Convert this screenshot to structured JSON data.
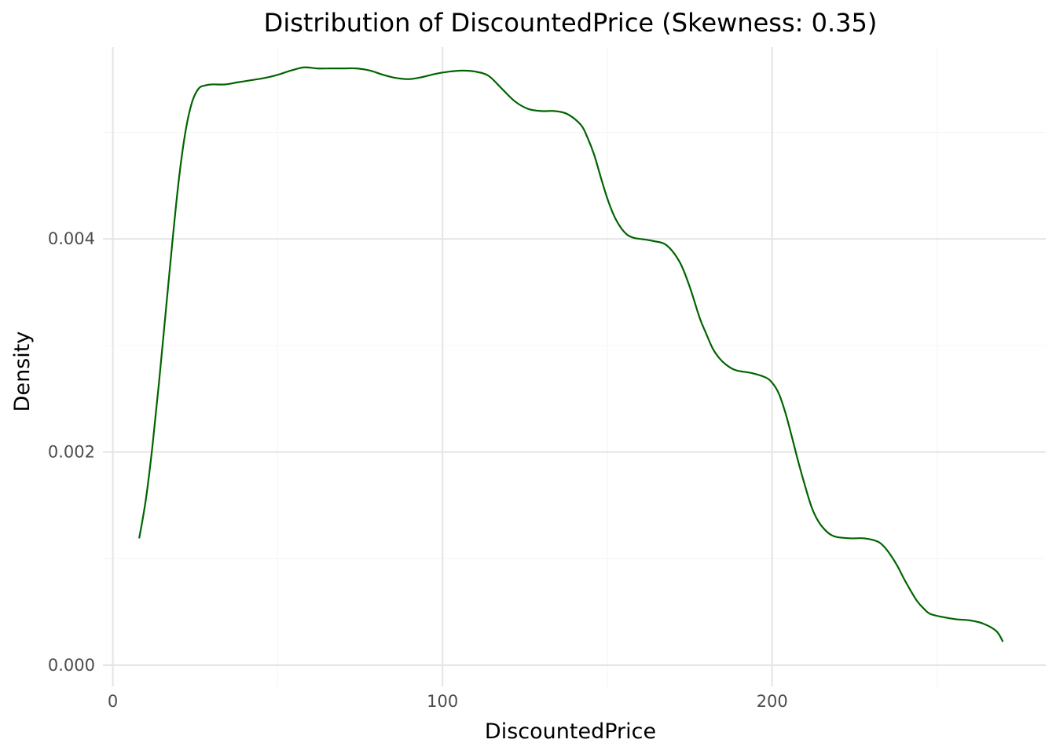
{
  "chart_data": {
    "type": "line",
    "title": "Distribution of DiscountedPrice (Skewness: 0.35)",
    "xlabel": "DiscountedPrice",
    "ylabel": "Density",
    "xlim": [
      -3,
      283
    ],
    "ylim": [
      -0.0002,
      0.0058
    ],
    "x_ticks": [
      0,
      100,
      200
    ],
    "x_tick_labels": [
      "0",
      "100",
      "200"
    ],
    "y_ticks": [
      0.0,
      0.002,
      0.004
    ],
    "y_tick_labels": [
      "0.000",
      "0.002",
      "0.004"
    ],
    "x_minor_ticks": [
      50,
      150,
      250
    ],
    "y_minor_ticks": [
      0.001,
      0.003,
      0.005
    ],
    "grid": true,
    "legend": "none",
    "line_color": "#006400",
    "series": [
      {
        "x": [
          8,
          10,
          12,
          14,
          16,
          18,
          20,
          22,
          24,
          26,
          28,
          30,
          34,
          38,
          42,
          46,
          50,
          54,
          58,
          62,
          66,
          70,
          74,
          78,
          82,
          86,
          90,
          94,
          98,
          102,
          106,
          110,
          114,
          118,
          122,
          126,
          130,
          134,
          138,
          142,
          144,
          146,
          148,
          150,
          152,
          154,
          156,
          158,
          160,
          164,
          168,
          172,
          175,
          178,
          180,
          182,
          184,
          186,
          188,
          190,
          194,
          198,
          200,
          202,
          204,
          206,
          208,
          210,
          212,
          214,
          216,
          218,
          220,
          224,
          228,
          232,
          234,
          236,
          238,
          240,
          242,
          244,
          246,
          248,
          252,
          256,
          260,
          264,
          268,
          270
        ],
        "y": [
          0.00119,
          0.00155,
          0.00205,
          0.00265,
          0.0033,
          0.00395,
          0.00455,
          0.005,
          0.00528,
          0.00541,
          0.00544,
          0.00545,
          0.00545,
          0.00547,
          0.00549,
          0.00551,
          0.00554,
          0.00558,
          0.00561,
          0.0056,
          0.0056,
          0.0056,
          0.0056,
          0.00558,
          0.00554,
          0.00551,
          0.0055,
          0.00552,
          0.00555,
          0.00557,
          0.00558,
          0.00557,
          0.00553,
          0.00541,
          0.00529,
          0.00522,
          0.0052,
          0.0052,
          0.00517,
          0.00507,
          0.00495,
          0.00479,
          0.00458,
          0.00438,
          0.00422,
          0.00411,
          0.00404,
          0.00401,
          0.004,
          0.00398,
          0.00394,
          0.00378,
          0.00355,
          0.00326,
          0.00311,
          0.00297,
          0.00288,
          0.00282,
          0.00278,
          0.00276,
          0.00274,
          0.0027,
          0.00265,
          0.00255,
          0.00237,
          0.00214,
          0.0019,
          0.00168,
          0.00148,
          0.00135,
          0.00127,
          0.00122,
          0.0012,
          0.00119,
          0.00119,
          0.00116,
          0.00111,
          0.00103,
          0.00093,
          0.00081,
          0.0007,
          0.0006,
          0.00053,
          0.00048,
          0.00045,
          0.00043,
          0.00042,
          0.00039,
          0.00032,
          0.00022
        ]
      }
    ]
  }
}
